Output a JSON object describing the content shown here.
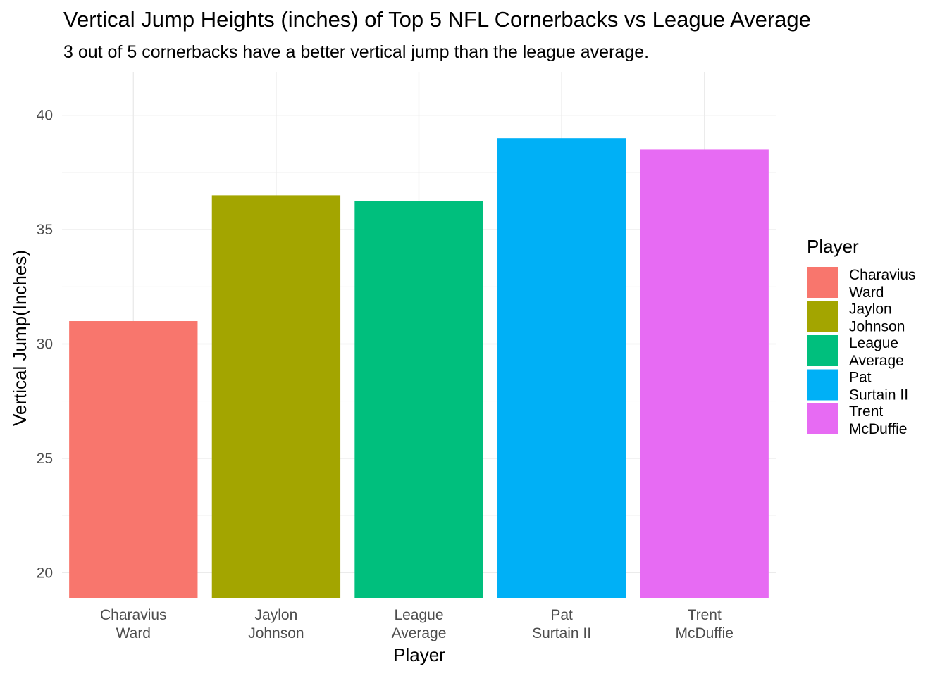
{
  "title": "Vertical Jump Heights (inches) of Top 5 NFL Cornerbacks vs League Average",
  "subtitle": "3 out of 5 cornerbacks have a better vertical jump than the league average.",
  "chart_data": {
    "type": "bar",
    "title": "Vertical Jump Heights (inches) of Top 5 NFL Cornerbacks vs League Average",
    "subtitle": "3 out of 5 cornerbacks have a better vertical jump than the league average.",
    "xlabel": "Player",
    "ylabel": "Vertical Jump(Inches)",
    "categories": [
      "Charavius Ward",
      "Jaylon Johnson",
      "League Average",
      "Pat Surtain II",
      "Trent McDuffie"
    ],
    "category_lines": [
      [
        "Charavius",
        "Ward"
      ],
      [
        "Jaylon",
        "Johnson"
      ],
      [
        "League",
        "Average"
      ],
      [
        "Pat",
        "Surtain II"
      ],
      [
        "Trent",
        "McDuffie"
      ]
    ],
    "values": [
      31,
      36.5,
      36.25,
      39,
      38.5
    ],
    "colors": [
      "#F8766D",
      "#A3A500",
      "#00BF7D",
      "#00B0F6",
      "#E76BF3"
    ],
    "ylim": [
      18.9,
      41.9
    ],
    "yticks": [
      20,
      25,
      30,
      35,
      40
    ],
    "grid": true,
    "legend": {
      "title": "Player",
      "position": "right"
    }
  }
}
